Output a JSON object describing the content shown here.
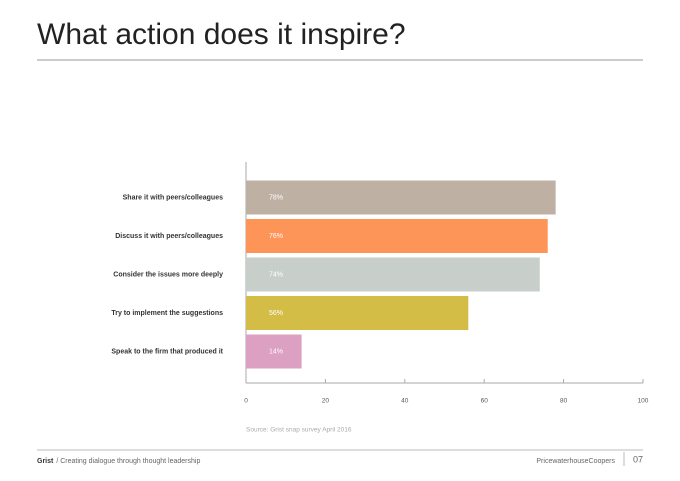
{
  "chart_data": {
    "type": "hbar",
    "title": "What action does it inspire?",
    "categories": [
      "Share it with peers/colleagues",
      "Discuss it with peers/colleagues",
      "Consider the issues more deeply",
      "Try to implement the suggestions",
      "Speak to the firm that produced it"
    ],
    "values": [
      78,
      76,
      74,
      56,
      14
    ],
    "value_labels": [
      "78%",
      "76%",
      "74%",
      "56%",
      "14%"
    ],
    "colors": [
      "#bfb0a4",
      "#fd9558",
      "#c8cfcb",
      "#d4bd47",
      "#dba0c2"
    ],
    "xlim": [
      0,
      100
    ],
    "xticks": [
      0,
      20,
      40,
      60,
      80,
      100
    ],
    "source": "Source: Grist snap survey April 2016"
  },
  "footer": {
    "brand": "Grist",
    "tagline": "/ Creating dialogue through thought leadership",
    "company": "PricewaterhouseCoopers",
    "page": "07"
  }
}
